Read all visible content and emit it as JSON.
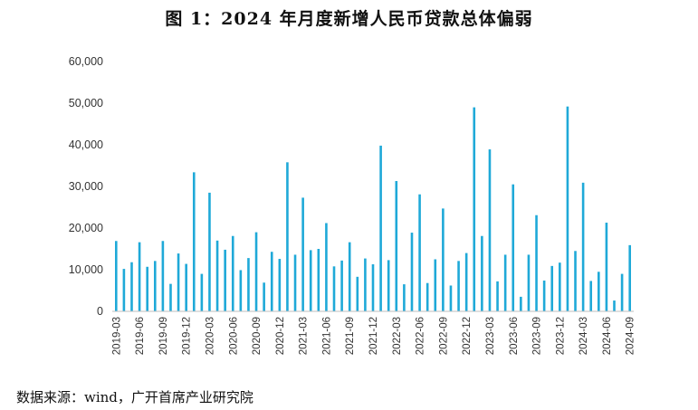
{
  "figure": {
    "title": "图 1：2024 年月度新增人民币贷款总体偏弱",
    "source": "数据来源：wind，广开首席产业研究院"
  },
  "chart_data": {
    "type": "bar",
    "color": "#1FA9D8",
    "ylim": [
      0,
      60000
    ],
    "yticks": [
      0,
      10000,
      20000,
      30000,
      40000,
      50000,
      60000
    ],
    "ytick_labels": [
      "0",
      "10,000",
      "20,000",
      "30,000",
      "40,000",
      "50,000",
      "60,000"
    ],
    "x_tick_labels": [
      "2019-03",
      "2019-06",
      "2019-09",
      "2019-12",
      "2020-03",
      "2020-06",
      "2020-09",
      "2020-12",
      "2021-03",
      "2021-06",
      "2021-09",
      "2021-12",
      "2022-03",
      "2022-06",
      "2022-09",
      "2022-12",
      "2023-03",
      "2023-06",
      "2023-09",
      "2023-12",
      "2024-03",
      "2024-06",
      "2024-09"
    ],
    "categories": [
      "2019-03",
      "2019-04",
      "2019-05",
      "2019-06",
      "2019-07",
      "2019-08",
      "2019-09",
      "2019-10",
      "2019-11",
      "2019-12",
      "2020-01",
      "2020-02",
      "2020-03",
      "2020-04",
      "2020-05",
      "2020-06",
      "2020-07",
      "2020-08",
      "2020-09",
      "2020-10",
      "2020-11",
      "2020-12",
      "2021-01",
      "2021-02",
      "2021-03",
      "2021-04",
      "2021-05",
      "2021-06",
      "2021-07",
      "2021-08",
      "2021-09",
      "2021-10",
      "2021-11",
      "2021-12",
      "2022-01",
      "2022-02",
      "2022-03",
      "2022-04",
      "2022-05",
      "2022-06",
      "2022-07",
      "2022-08",
      "2022-09",
      "2022-10",
      "2022-11",
      "2022-12",
      "2023-01",
      "2023-02",
      "2023-03",
      "2023-04",
      "2023-05",
      "2023-06",
      "2023-07",
      "2023-08",
      "2023-09",
      "2023-10",
      "2023-11",
      "2023-12",
      "2024-01",
      "2024-02",
      "2024-03",
      "2024-04",
      "2024-05",
      "2024-06",
      "2024-07",
      "2024-08",
      "2024-09"
    ],
    "values": [
      16900,
      10200,
      11800,
      16600,
      10700,
      12100,
      16900,
      6600,
      13900,
      11400,
      33400,
      9000,
      28500,
      17000,
      14800,
      18100,
      9900,
      12800,
      19000,
      6900,
      14300,
      12600,
      35800,
      13600,
      27300,
      14700,
      15000,
      21200,
      10800,
      12200,
      16600,
      8300,
      12700,
      11300,
      39800,
      12300,
      31300,
      6500,
      18900,
      28100,
      6800,
      12500,
      24700,
      6200,
      12100,
      14000,
      49000,
      18100,
      38900,
      7200,
      13600,
      30500,
      3500,
      13600,
      23100,
      7400,
      10900,
      11700,
      49200,
      14500,
      30900,
      7300,
      9500,
      21300,
      2600,
      9000,
      15900
    ]
  }
}
